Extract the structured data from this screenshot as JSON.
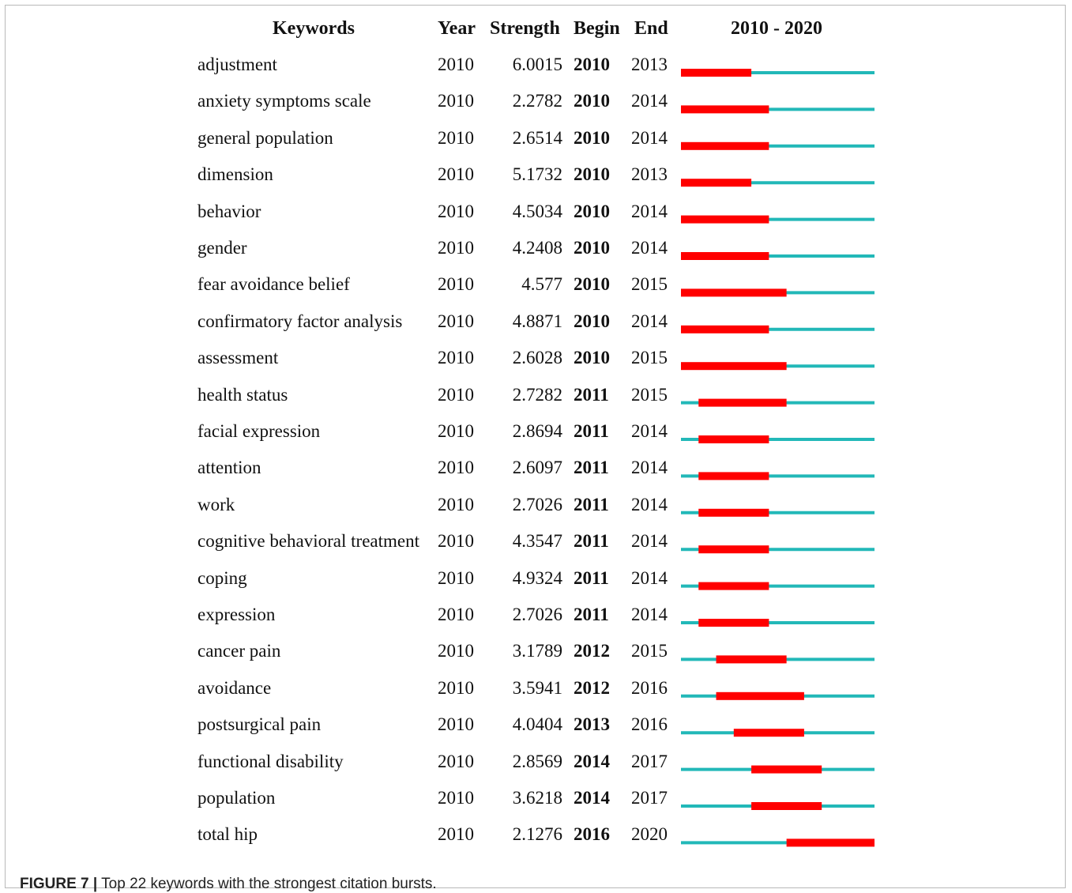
{
  "chart_data": {
    "type": "table",
    "columns": [
      "Keywords",
      "Year",
      "Strength",
      "Begin",
      "End",
      "2010 - 2020"
    ],
    "range": [
      2010,
      2020
    ],
    "colors": {
      "burst": "#ff0000",
      "baseline": "#22b8b8"
    },
    "rows": [
      {
        "keyword": "adjustment",
        "year": "2010",
        "strength": "6.0015",
        "begin": "2010",
        "end": "2013"
      },
      {
        "keyword": "anxiety symptoms scale",
        "year": "2010",
        "strength": "2.2782",
        "begin": "2010",
        "end": "2014"
      },
      {
        "keyword": "general population",
        "year": "2010",
        "strength": "2.6514",
        "begin": "2010",
        "end": "2014"
      },
      {
        "keyword": "dimension",
        "year": "2010",
        "strength": "5.1732",
        "begin": "2010",
        "end": "2013"
      },
      {
        "keyword": "behavior",
        "year": "2010",
        "strength": "4.5034",
        "begin": "2010",
        "end": "2014"
      },
      {
        "keyword": "gender",
        "year": "2010",
        "strength": "4.2408",
        "begin": "2010",
        "end": "2014"
      },
      {
        "keyword": "fear avoidance belief",
        "year": "2010",
        "strength": "4.577",
        "begin": "2010",
        "end": "2015"
      },
      {
        "keyword": "confirmatory factor analysis",
        "year": "2010",
        "strength": "4.8871",
        "begin": "2010",
        "end": "2014"
      },
      {
        "keyword": "assessment",
        "year": "2010",
        "strength": "2.6028",
        "begin": "2010",
        "end": "2015"
      },
      {
        "keyword": "health status",
        "year": "2010",
        "strength": "2.7282",
        "begin": "2011",
        "end": "2015"
      },
      {
        "keyword": "facial expression",
        "year": "2010",
        "strength": "2.8694",
        "begin": "2011",
        "end": "2014"
      },
      {
        "keyword": "attention",
        "year": "2010",
        "strength": "2.6097",
        "begin": "2011",
        "end": "2014"
      },
      {
        "keyword": "work",
        "year": "2010",
        "strength": "2.7026",
        "begin": "2011",
        "end": "2014"
      },
      {
        "keyword": "cognitive behavioral treatment",
        "year": "2010",
        "strength": "4.3547",
        "begin": "2011",
        "end": "2014"
      },
      {
        "keyword": "coping",
        "year": "2010",
        "strength": "4.9324",
        "begin": "2011",
        "end": "2014"
      },
      {
        "keyword": "expression",
        "year": "2010",
        "strength": "2.7026",
        "begin": "2011",
        "end": "2014"
      },
      {
        "keyword": "cancer pain",
        "year": "2010",
        "strength": "3.1789",
        "begin": "2012",
        "end": "2015"
      },
      {
        "keyword": "avoidance",
        "year": "2010",
        "strength": "3.5941",
        "begin": "2012",
        "end": "2016"
      },
      {
        "keyword": "postsurgical pain",
        "year": "2010",
        "strength": "4.0404",
        "begin": "2013",
        "end": "2016"
      },
      {
        "keyword": "functional disability",
        "year": "2010",
        "strength": "2.8569",
        "begin": "2014",
        "end": "2017"
      },
      {
        "keyword": "population",
        "year": "2010",
        "strength": "3.6218",
        "begin": "2014",
        "end": "2017"
      },
      {
        "keyword": "total hip",
        "year": "2010",
        "strength": "2.1276",
        "begin": "2016",
        "end": "2020"
      }
    ]
  },
  "caption": {
    "label": "FIGURE 7 |",
    "text": " Top 22 keywords with the strongest citation bursts."
  }
}
